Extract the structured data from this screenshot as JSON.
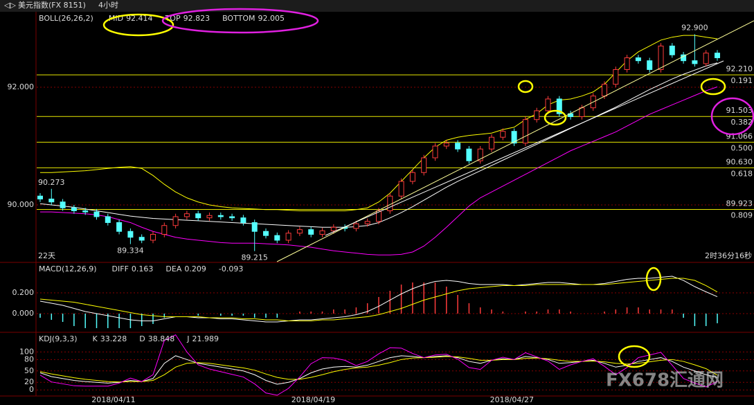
{
  "toolbar": {
    "symbol": "美元指数(FX 8151)",
    "period": "4小时"
  },
  "watermark": "FX678汇通网",
  "chart_data": [
    {
      "type": "candlestick",
      "indicator": "BOLL(26,26,2)",
      "ylim": [
        89.035,
        93.27
      ],
      "yticks": [
        {
          "value": 92,
          "label": "92.000"
        },
        {
          "value": 90,
          "label": "90.000"
        }
      ],
      "xticks": [
        {
          "value": 6.5,
          "label": "2018/04/11"
        },
        {
          "value": 24.2,
          "label": "2018/04/19"
        },
        {
          "value": 41.8,
          "label": "2018/04/27"
        }
      ],
      "up_color": "#ff3c3c",
      "down_color": "#54ffff",
      "open": [
        90.15,
        90.1,
        90.05,
        89.95,
        89.9,
        89.88,
        89.8,
        89.7,
        89.55,
        89.45,
        89.4,
        89.5,
        89.65,
        89.8,
        89.85,
        89.78,
        89.82,
        89.8,
        89.78,
        89.7,
        89.55,
        89.48,
        89.4,
        89.52,
        89.58,
        89.5,
        89.56,
        89.62,
        89.6,
        89.68,
        89.72,
        89.9,
        90.15,
        90.4,
        90.55,
        90.8,
        91.0,
        91.05,
        90.95,
        90.75,
        90.95,
        91.15,
        91.25,
        91.05,
        91.45,
        91.6,
        91.8,
        91.55,
        91.5,
        91.65,
        91.85,
        92.05,
        92.3,
        92.5,
        92.45,
        92.3,
        92.7,
        92.55,
        92.45,
        92.4,
        92.58
      ],
      "high": [
        90.2,
        90.273,
        90.1,
        90.0,
        89.95,
        89.93,
        89.85,
        89.75,
        89.6,
        89.5,
        89.55,
        89.7,
        89.85,
        89.9,
        89.9,
        89.87,
        89.87,
        89.85,
        89.83,
        89.75,
        89.6,
        89.53,
        89.57,
        89.63,
        89.63,
        89.61,
        89.67,
        89.67,
        89.73,
        89.77,
        89.95,
        90.2,
        90.45,
        90.6,
        90.85,
        91.05,
        91.1,
        91.1,
        91.0,
        91.0,
        91.2,
        91.3,
        91.3,
        91.5,
        91.65,
        91.85,
        91.85,
        91.6,
        91.7,
        91.9,
        92.1,
        92.35,
        92.55,
        92.55,
        92.5,
        92.75,
        92.75,
        92.6,
        92.9,
        92.63,
        92.63
      ],
      "low": [
        90.05,
        90.0,
        89.9,
        89.85,
        89.83,
        89.75,
        89.65,
        89.5,
        89.334,
        89.35,
        89.35,
        89.45,
        89.6,
        89.75,
        89.73,
        89.73,
        89.75,
        89.73,
        89.65,
        89.215,
        89.43,
        89.35,
        89.35,
        89.47,
        89.45,
        89.45,
        89.51,
        89.55,
        89.55,
        89.63,
        89.67,
        89.85,
        90.1,
        90.35,
        90.5,
        90.75,
        90.95,
        90.9,
        90.7,
        90.7,
        90.9,
        91.1,
        91.0,
        91.0,
        91.4,
        91.55,
        91.5,
        91.45,
        91.45,
        91.6,
        91.8,
        92.0,
        92.25,
        92.4,
        92.25,
        92.25,
        92.5,
        92.4,
        92.35,
        92.35,
        92.45
      ],
      "close": [
        90.1,
        90.05,
        89.95,
        89.9,
        89.88,
        89.8,
        89.7,
        89.55,
        89.45,
        89.4,
        89.5,
        89.65,
        89.8,
        89.85,
        89.78,
        89.82,
        89.8,
        89.78,
        89.7,
        89.55,
        89.48,
        89.4,
        89.52,
        89.58,
        89.5,
        89.56,
        89.62,
        89.6,
        89.68,
        89.72,
        89.9,
        90.15,
        90.4,
        90.55,
        90.8,
        91.0,
        91.05,
        90.95,
        90.75,
        90.95,
        91.15,
        91.25,
        91.05,
        91.45,
        91.6,
        91.8,
        91.55,
        91.5,
        91.65,
        91.85,
        92.05,
        92.3,
        92.5,
        92.45,
        92.3,
        92.7,
        92.55,
        92.45,
        92.4,
        92.58,
        92.5
      ],
      "series": [
        {
          "name": "MID",
          "color": "#ffffff",
          "values": [
            90.02,
            90.0,
            89.98,
            89.96,
            89.93,
            89.9,
            89.87,
            89.84,
            89.81,
            89.79,
            89.77,
            89.76,
            89.75,
            89.74,
            89.73,
            89.72,
            89.71,
            89.7,
            89.69,
            89.68,
            89.67,
            89.66,
            89.65,
            89.64,
            89.63,
            89.62,
            89.62,
            89.62,
            89.63,
            89.65,
            89.7,
            89.78,
            89.87,
            89.97,
            90.08,
            90.19,
            90.3,
            90.4,
            90.49,
            90.58,
            90.67,
            90.76,
            90.85,
            90.94,
            91.03,
            91.12,
            91.21,
            91.3,
            91.39,
            91.48,
            91.57,
            91.66,
            91.76,
            91.86,
            91.96,
            92.05,
            92.14,
            92.22,
            92.29,
            92.36,
            92.414
          ]
        },
        {
          "name": "TOP",
          "color": "#ffff00",
          "values": [
            90.55,
            90.55,
            90.56,
            90.57,
            90.58,
            90.6,
            90.62,
            90.64,
            90.65,
            90.62,
            90.5,
            90.35,
            90.22,
            90.12,
            90.05,
            90.0,
            89.97,
            89.95,
            89.94,
            89.93,
            89.92,
            89.92,
            89.91,
            89.9,
            89.9,
            89.9,
            89.9,
            89.9,
            89.92,
            89.95,
            90.05,
            90.2,
            90.4,
            90.6,
            90.8,
            90.98,
            91.1,
            91.15,
            91.18,
            91.2,
            91.22,
            91.28,
            91.32,
            91.45,
            91.55,
            91.7,
            91.78,
            91.8,
            91.85,
            91.92,
            92.05,
            92.25,
            92.45,
            92.6,
            92.7,
            92.8,
            92.85,
            92.88,
            92.88,
            92.85,
            92.823
          ]
        },
        {
          "name": "BOTTOM",
          "color": "#ff00ff",
          "values": [
            89.88,
            89.88,
            89.87,
            89.86,
            89.85,
            89.83,
            89.8,
            89.75,
            89.7,
            89.62,
            89.55,
            89.5,
            89.45,
            89.42,
            89.4,
            89.38,
            89.36,
            89.35,
            89.35,
            89.35,
            89.34,
            89.33,
            89.32,
            89.3,
            89.28,
            89.25,
            89.22,
            89.2,
            89.18,
            89.16,
            89.15,
            89.15,
            89.16,
            89.2,
            89.3,
            89.45,
            89.62,
            89.8,
            89.98,
            90.12,
            90.22,
            90.32,
            90.42,
            90.52,
            90.62,
            90.72,
            90.82,
            90.92,
            91.0,
            91.08,
            91.16,
            91.24,
            91.34,
            91.44,
            91.54,
            91.62,
            91.7,
            91.78,
            91.86,
            91.94,
            92.005
          ]
        }
      ],
      "levels": [
        {
          "value": 92.21,
          "label": "92.210",
          "ratio": 0.191
        },
        {
          "value": 91.503,
          "label": "91.503",
          "ratio": 0.382
        },
        {
          "value": 91.066,
          "label": "91.066",
          "ratio": {
            "value": 0.5,
            "label": "0.500"
          }
        },
        {
          "value": 90.63,
          "label": "90.630",
          "ratio": 0.618
        },
        {
          "value": 89.923,
          "label": "89.923",
          "ratio": 0.809
        }
      ],
      "annotations": [
        {
          "value": 90.273,
          "label": "90.273",
          "index": 1
        },
        {
          "value": 89.334,
          "label": "89.334",
          "index": 8
        },
        {
          "value": 89.215,
          "label": "89.215",
          "index": 19
        },
        {
          "value": 92.9,
          "label": "92.900",
          "index": 58
        }
      ],
      "footer_left": "22天",
      "footer_right": "2时36分16秒"
    },
    {
      "type": "macd",
      "indicator": "MACD(12,26,9)",
      "ylim": [
        -0.167,
        0.487
      ],
      "yticks": [
        {
          "value": 0.2,
          "label": "0.200"
        },
        {
          "value": 0,
          "label": "0.000"
        }
      ],
      "up_color": "#ff3c3c",
      "down_color": "#54ffff",
      "series": [
        {
          "name": "DIFF",
          "color": "#ffffff",
          "values": [
            0.12,
            0.1,
            0.08,
            0.05,
            0.02,
            0.0,
            -0.02,
            -0.04,
            -0.06,
            -0.07,
            -0.07,
            -0.05,
            -0.03,
            -0.03,
            -0.04,
            -0.04,
            -0.05,
            -0.05,
            -0.06,
            -0.07,
            -0.08,
            -0.08,
            -0.07,
            -0.06,
            -0.06,
            -0.05,
            -0.04,
            -0.03,
            -0.01,
            0.02,
            0.07,
            0.13,
            0.19,
            0.24,
            0.28,
            0.31,
            0.32,
            0.31,
            0.29,
            0.28,
            0.28,
            0.28,
            0.27,
            0.28,
            0.29,
            0.3,
            0.3,
            0.29,
            0.28,
            0.28,
            0.29,
            0.31,
            0.33,
            0.34,
            0.34,
            0.35,
            0.36,
            0.32,
            0.26,
            0.21,
            0.163
          ]
        },
        {
          "name": "DEA",
          "color": "#ffff00",
          "values": [
            0.14,
            0.13,
            0.12,
            0.11,
            0.09,
            0.07,
            0.05,
            0.03,
            0.01,
            -0.01,
            -0.02,
            -0.03,
            -0.03,
            -0.03,
            -0.03,
            -0.04,
            -0.04,
            -0.04,
            -0.05,
            -0.05,
            -0.06,
            -0.06,
            -0.07,
            -0.07,
            -0.07,
            -0.06,
            -0.06,
            -0.05,
            -0.04,
            -0.03,
            -0.01,
            0.02,
            0.05,
            0.09,
            0.13,
            0.16,
            0.19,
            0.22,
            0.24,
            0.25,
            0.26,
            0.27,
            0.27,
            0.27,
            0.28,
            0.28,
            0.28,
            0.28,
            0.28,
            0.28,
            0.28,
            0.29,
            0.3,
            0.31,
            0.32,
            0.33,
            0.34,
            0.34,
            0.32,
            0.27,
            0.209
          ]
        }
      ],
      "histogram": [
        -0.04,
        -0.06,
        -0.08,
        -0.12,
        -0.14,
        -0.14,
        -0.14,
        -0.14,
        -0.14,
        -0.12,
        -0.1,
        -0.04,
        0,
        0,
        -0.02,
        0,
        -0.02,
        -0.02,
        -0.02,
        -0.04,
        -0.04,
        -0.04,
        0,
        0.02,
        0.02,
        0.02,
        0.04,
        0.04,
        0.06,
        0.1,
        0.16,
        0.22,
        0.28,
        0.3,
        0.3,
        0.3,
        0.26,
        0.18,
        0.1,
        0.06,
        0.04,
        0.02,
        0,
        0.02,
        0.02,
        0.04,
        0.04,
        0.02,
        0,
        0,
        0.02,
        0.04,
        0.06,
        0.06,
        0.04,
        0.04,
        0.04,
        -0.04,
        -0.12,
        -0.12,
        -0.093
      ]
    },
    {
      "type": "kdj",
      "indicator": "KDJ(9,3,3)",
      "ylim": [
        -16,
        148
      ],
      "yticks": [
        100,
        80,
        50,
        20,
        0
      ],
      "series": [
        {
          "name": "K",
          "color": "#ffffff",
          "values": [
            45,
            35,
            30,
            25,
            22,
            20,
            18,
            20,
            25,
            22,
            30,
            70,
            90,
            80,
            70,
            65,
            60,
            55,
            50,
            40,
            25,
            15,
            20,
            30,
            45,
            55,
            60,
            62,
            60,
            65,
            75,
            85,
            90,
            88,
            85,
            88,
            90,
            85,
            75,
            70,
            78,
            82,
            80,
            88,
            85,
            80,
            70,
            72,
            75,
            78,
            70,
            60,
            65,
            75,
            80,
            85,
            75,
            60,
            50,
            40,
            33.228
          ]
        },
        {
          "name": "D",
          "color": "#ffff00",
          "values": [
            48,
            42,
            37,
            32,
            28,
            25,
            22,
            21,
            22,
            22,
            25,
            40,
            60,
            70,
            72,
            70,
            66,
            62,
            58,
            52,
            42,
            33,
            28,
            28,
            33,
            40,
            48,
            54,
            58,
            60,
            65,
            72,
            80,
            84,
            85,
            86,
            88,
            87,
            83,
            78,
            78,
            80,
            80,
            83,
            84,
            82,
            78,
            75,
            75,
            76,
            74,
            70,
            68,
            70,
            74,
            78,
            80,
            75,
            66,
            56,
            38.848
          ]
        },
        {
          "name": "J",
          "color": "#ff00ff",
          "values": [
            39,
            21,
            16,
            11,
            10,
            10,
            10,
            18,
            31,
            22,
            40,
            130,
            145,
            100,
            66,
            55,
            48,
            41,
            34,
            16,
            -8,
            -14,
            4,
            34,
            69,
            85,
            84,
            78,
            64,
            75,
            95,
            111,
            110,
            96,
            85,
            92,
            94,
            81,
            59,
            54,
            78,
            86,
            80,
            98,
            87,
            76,
            54,
            66,
            75,
            82,
            62,
            40,
            59,
            85,
            92,
            99,
            65,
            30,
            18,
            8,
            21.989
          ]
        }
      ]
    }
  ]
}
